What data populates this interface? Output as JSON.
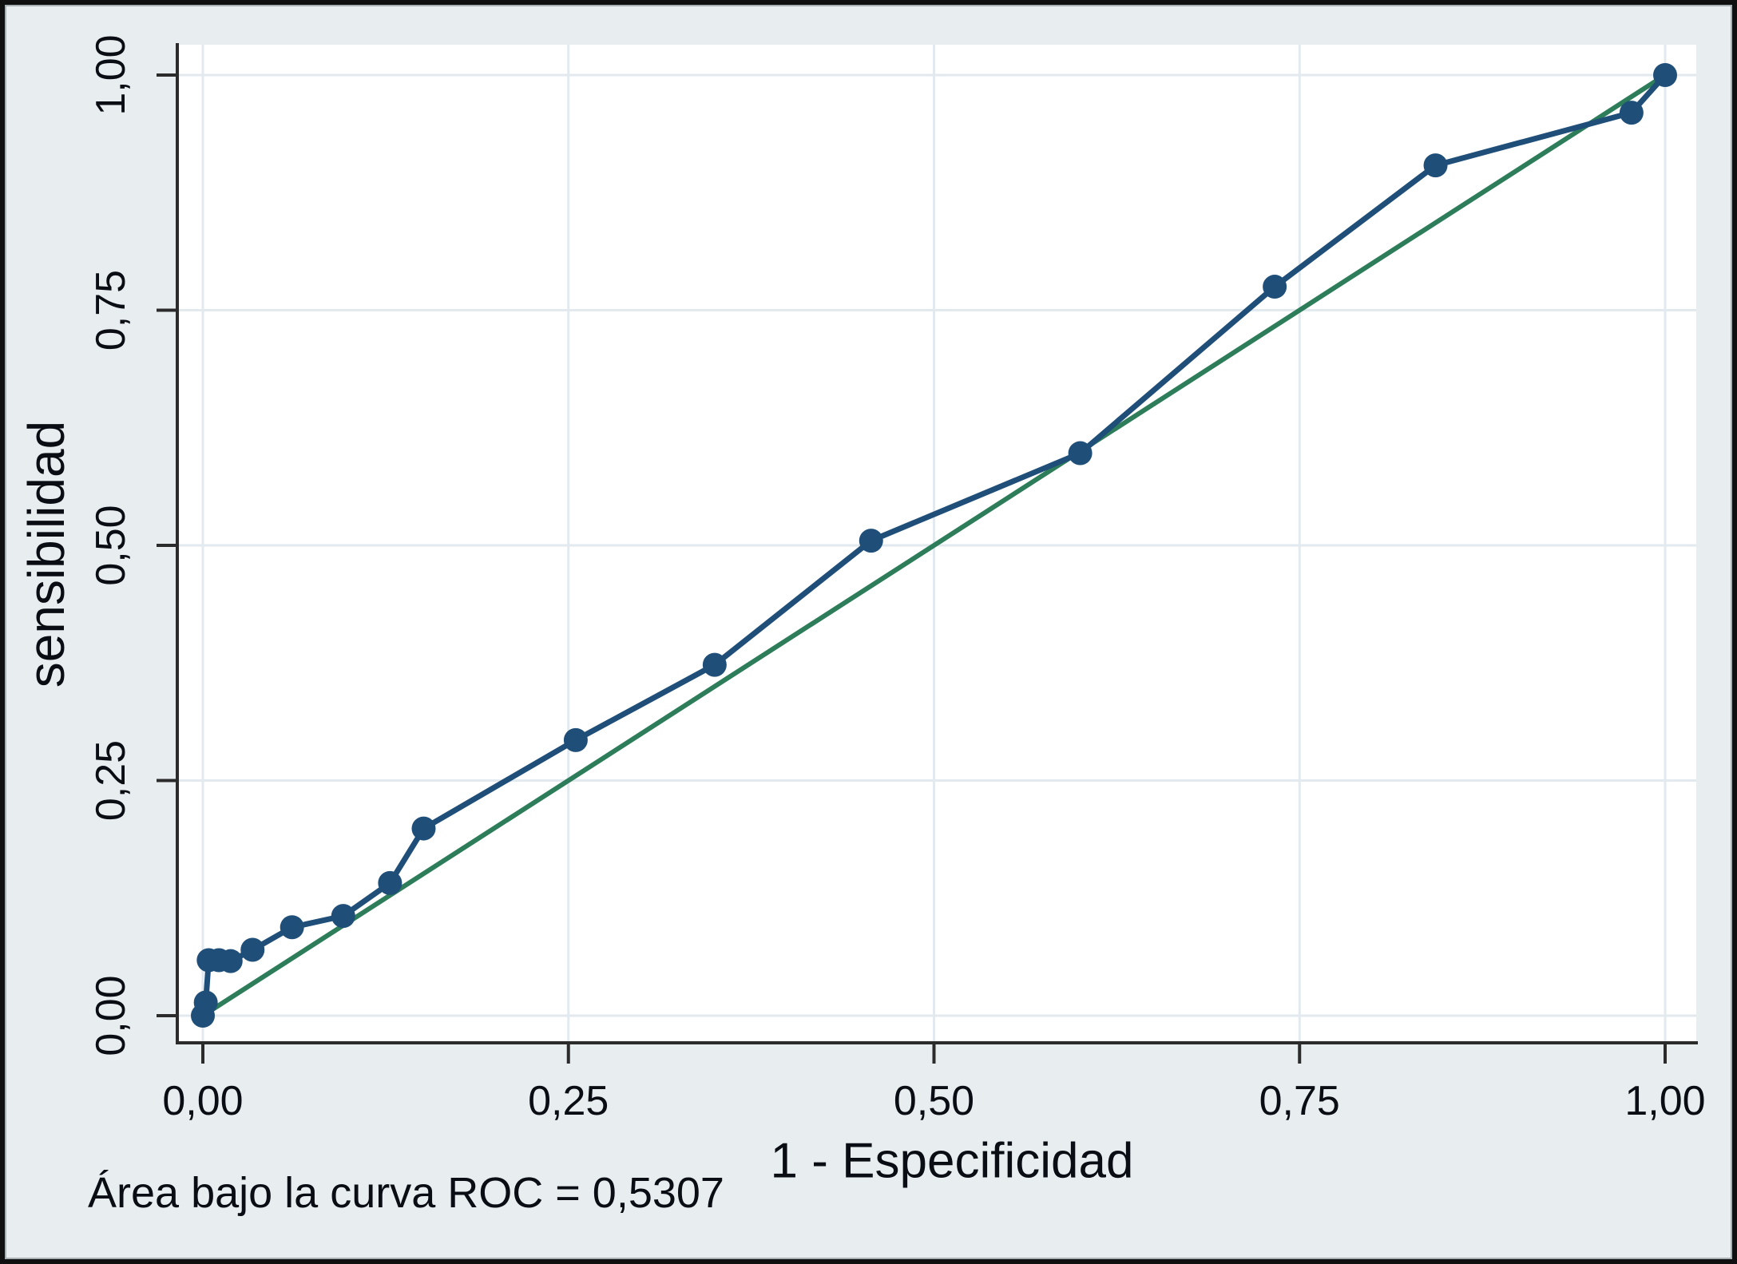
{
  "labels": {
    "y_axis": "sensibilidad",
    "x_axis": "1 - Especificidad",
    "caption": "Área bajo la curva ROC = 0,5307"
  },
  "chart_data": {
    "type": "line",
    "title": "",
    "xlabel": "1 - Especificidad",
    "ylabel": "sensibilidad",
    "xlim": [
      0,
      1
    ],
    "ylim": [
      0,
      1
    ],
    "grid": true,
    "legend": "none",
    "x_ticks": {
      "values": [
        0,
        0.25,
        0.5,
        0.75,
        1
      ],
      "labels": [
        "0,00",
        "0,25",
        "0,50",
        "0,75",
        "1,00"
      ]
    },
    "y_ticks": {
      "values": [
        0,
        0.25,
        0.5,
        0.75,
        1
      ],
      "labels": [
        "0,00",
        "0,25",
        "0,50",
        "0,75",
        "1,00"
      ]
    },
    "annotation": "Área bajo la curva ROC = 0,5307",
    "auc": 0.5307,
    "series": [
      {
        "name": "ROC curve",
        "style": "line_markers",
        "color": "#1f4e79",
        "points": [
          [
            0.0,
            0.0
          ],
          [
            0.002,
            0.014
          ],
          [
            0.004,
            0.059
          ],
          [
            0.011,
            0.059
          ],
          [
            0.019,
            0.058
          ],
          [
            0.034,
            0.07
          ],
          [
            0.061,
            0.094
          ],
          [
            0.096,
            0.106
          ],
          [
            0.128,
            0.141
          ],
          [
            0.151,
            0.199
          ],
          [
            0.255,
            0.293
          ],
          [
            0.35,
            0.373
          ],
          [
            0.457,
            0.505
          ],
          [
            0.6,
            0.598
          ],
          [
            0.733,
            0.775
          ],
          [
            0.843,
            0.904
          ],
          [
            0.977,
            0.96
          ],
          [
            1.0,
            1.0
          ]
        ]
      },
      {
        "name": "reference diagonal",
        "style": "line",
        "color": "#2e7d5a",
        "points": [
          [
            0,
            0
          ],
          [
            1,
            1
          ]
        ]
      }
    ]
  },
  "colors": {
    "background": "#e8edf0",
    "plot_background": "#ffffff",
    "gridline": "#e3eaef",
    "axis": "#2b2b2b",
    "text": "#0a0e14",
    "roc_line": "#1f4e79",
    "reference_line": "#2e7d5a",
    "border": "#101010"
  }
}
